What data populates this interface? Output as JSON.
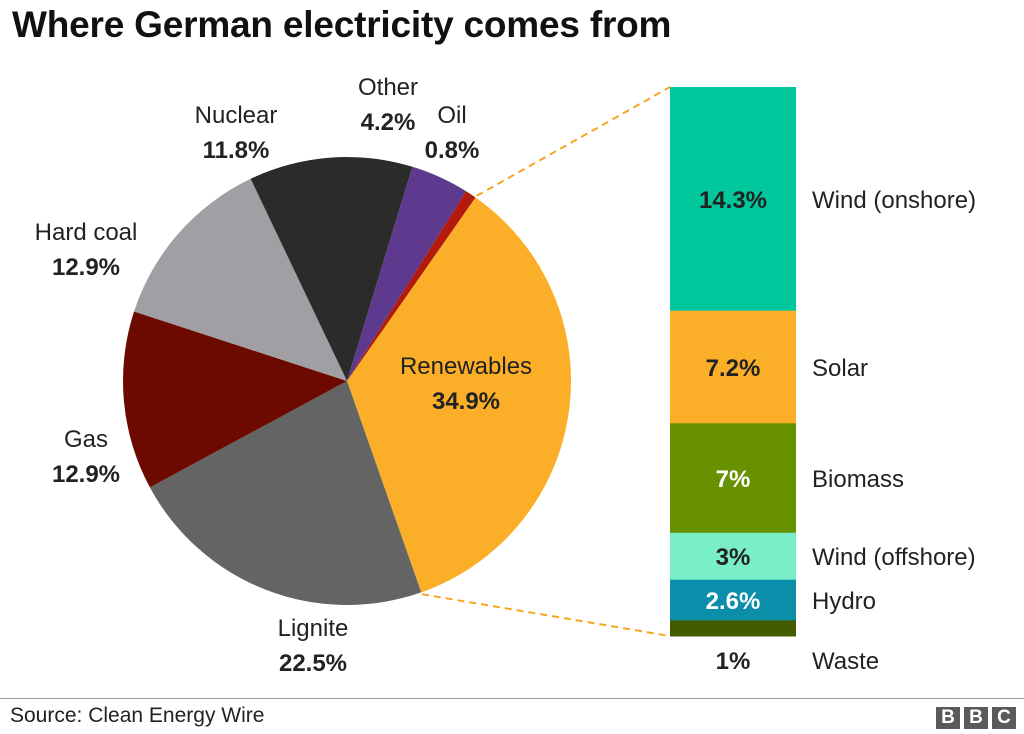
{
  "title": "Where German electricity comes from",
  "source": "Source: Clean Energy Wire",
  "logo_letters": [
    "B",
    "B",
    "C"
  ],
  "chart_data": [
    {
      "type": "pie",
      "slices": [
        {
          "label": "Renewables",
          "value": 34.9,
          "value_label": "34.9%",
          "color": "#fbae27"
        },
        {
          "label": "Lignite",
          "value": 22.5,
          "value_label": "22.5%",
          "color": "#646464"
        },
        {
          "label": "Gas",
          "value": 12.9,
          "value_label": "12.9%",
          "color": "#6c0a00"
        },
        {
          "label": "Hard coal",
          "value": 12.9,
          "value_label": "12.9%",
          "color": "#a0a0a4"
        },
        {
          "label": "Nuclear",
          "value": 11.8,
          "value_label": "11.8%",
          "color": "#2b2b2b"
        },
        {
          "label": "Other",
          "value": 4.2,
          "value_label": "4.2%",
          "color": "#5e3a8e"
        },
        {
          "label": "Oil",
          "value": 0.8,
          "value_label": "0.8%",
          "color": "#b31a0b"
        }
      ],
      "connector_color": "#f7a520"
    },
    {
      "type": "bar",
      "stacked": true,
      "categories": [
        "Wind (onshore)",
        "Solar",
        "Biomass",
        "Wind (offshore)",
        "Hydro",
        "Waste"
      ],
      "values": [
        14.3,
        7.2,
        7,
        3,
        2.6,
        1
      ],
      "value_labels": [
        "14.3%",
        "7.2%",
        "7%",
        "3%",
        "2.6%",
        "1%"
      ],
      "colors": [
        "#00c79c",
        "#fbae27",
        "#679100",
        "#7aeec8",
        "#0a8eaa",
        "#445c00"
      ],
      "label_colors": [
        "#222222",
        "#222222",
        "#ffffff",
        "#222222",
        "#ffffff",
        "#222222"
      ]
    }
  ]
}
